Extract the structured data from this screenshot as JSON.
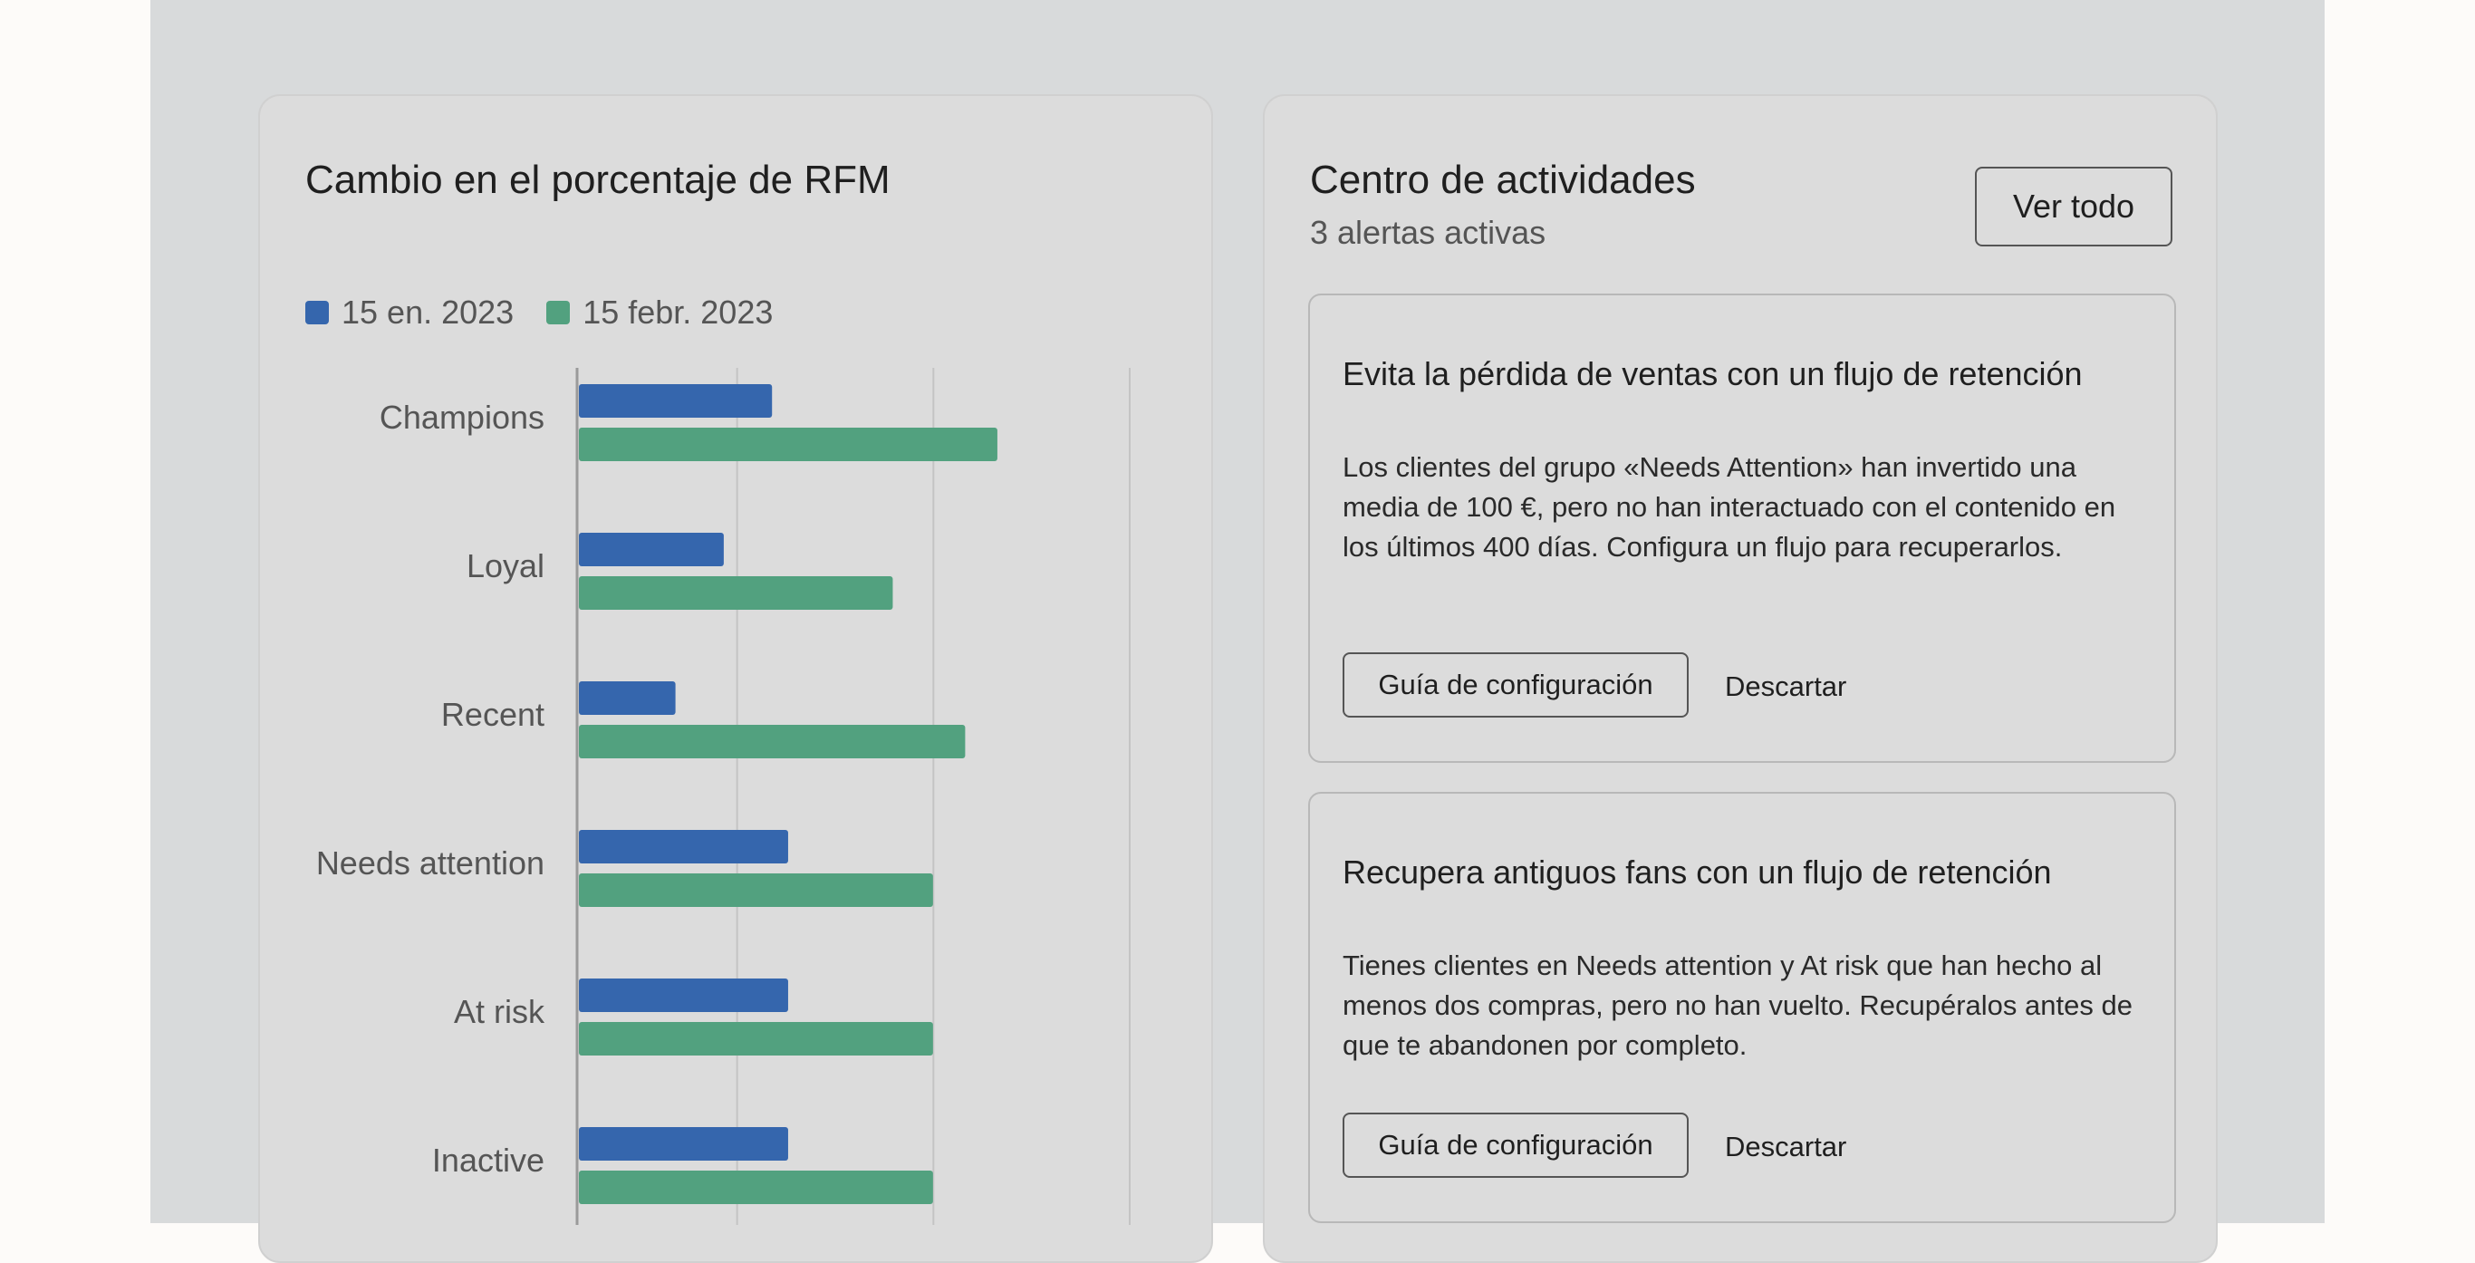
{
  "chart_card": {
    "title": "Cambio en el porcentaje de RFM",
    "legend": [
      {
        "label": "15 en. 2023",
        "color": "#3566ad"
      },
      {
        "label": "15 febr. 2023",
        "color": "#52a17f"
      }
    ]
  },
  "chart_data": {
    "type": "bar",
    "orientation": "horizontal",
    "title": "Cambio en el porcentaje de RFM",
    "categories": [
      "Champions",
      "Loyal",
      "Recent",
      "Needs attention",
      "At risk",
      "Inactive"
    ],
    "series": [
      {
        "name": "15 en. 2023",
        "color": "#3566ad",
        "values": [
          12,
          9,
          6,
          13,
          13,
          13
        ]
      },
      {
        "name": "15 febr. 2023",
        "color": "#52a17f",
        "values": [
          26,
          19.5,
          24,
          22,
          22,
          22
        ]
      }
    ],
    "xlim": [
      0,
      30
    ],
    "grid": true,
    "legend_position": "top-left"
  },
  "activity": {
    "title": "Centro de actividades",
    "subtitle": "3 alertas activas",
    "view_all_label": "Ver todo",
    "alerts": [
      {
        "title": "Evita la pérdida de ventas con un flujo de retención",
        "body": "Los clientes del grupo «Needs Attention» han invertido una media de 100 €, pero no han interactuado con el contenido en los últimos 400 días. Configura un flujo para recuperarlos.",
        "primary_label": "Guía de configuración",
        "secondary_label": "Descartar"
      },
      {
        "title": "Recupera antiguos fans con un flujo de retención",
        "body": "Tienes clientes en Needs attention y At risk que han hecho al menos dos compras, pero no han vuelto. Recupéralos antes de que te abandonen por completo.",
        "primary_label": "Guía de configuración",
        "secondary_label": "Descartar"
      }
    ]
  }
}
